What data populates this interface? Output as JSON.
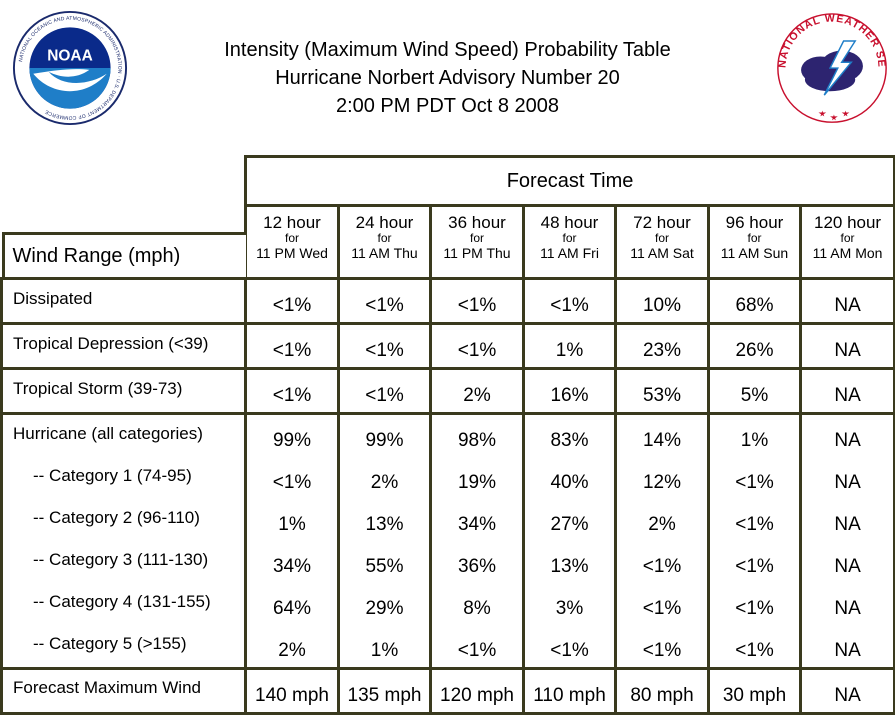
{
  "header": {
    "title_line1": "Intensity (Maximum Wind Speed) Probability Table",
    "title_line2": "Hurricane Norbert Advisory Number 20",
    "title_line3": "2:00 PM PDT Oct 8 2008",
    "noaa_logo": {
      "center_text": "NOAA",
      "ring_text": "NATIONAL OCEANIC AND ATMOSPHERIC ADMINISTRATION · U.S. DEPARTMENT OF COMMERCE"
    },
    "nws_logo": {
      "ring_text": "NATIONAL WEATHER SERVICE"
    }
  },
  "table": {
    "forecast_time_label": "Forecast Time",
    "wind_range_label": "Wind Range (mph)",
    "columns": [
      {
        "hour": "12 hour",
        "for": "for",
        "when": "11 PM Wed"
      },
      {
        "hour": "24 hour",
        "for": "for",
        "when": "11 AM Thu"
      },
      {
        "hour": "36 hour",
        "for": "for",
        "when": "11 PM Thu"
      },
      {
        "hour": "48 hour",
        "for": "for",
        "when": "11 AM Fri"
      },
      {
        "hour": "72 hour",
        "for": "for",
        "when": "11 AM Sat"
      },
      {
        "hour": "96 hour",
        "for": "for",
        "when": "11 AM Sun"
      },
      {
        "hour": "120 hour",
        "for": "for",
        "when": "11 AM Mon"
      }
    ],
    "groups": [
      {
        "rows": [
          {
            "label": "Dissipated",
            "values": [
              "<1%",
              "<1%",
              "<1%",
              "<1%",
              "10%",
              "68%",
              "NA"
            ]
          }
        ]
      },
      {
        "rows": [
          {
            "label": "Tropical Depression (<39)",
            "values": [
              "<1%",
              "<1%",
              "<1%",
              "1%",
              "23%",
              "26%",
              "NA"
            ]
          }
        ]
      },
      {
        "rows": [
          {
            "label": "Tropical Storm (39-73)",
            "values": [
              "<1%",
              "<1%",
              "2%",
              "16%",
              "53%",
              "5%",
              "NA"
            ]
          }
        ]
      },
      {
        "rows": [
          {
            "label": "Hurricane (all categories)",
            "values": [
              "99%",
              "99%",
              "98%",
              "83%",
              "14%",
              "1%",
              "NA"
            ]
          },
          {
            "label": "-- Category 1 (74-95)",
            "values": [
              "<1%",
              "2%",
              "19%",
              "40%",
              "12%",
              "<1%",
              "NA"
            ]
          },
          {
            "label": "-- Category 2 (96-110)",
            "values": [
              "1%",
              "13%",
              "34%",
              "27%",
              "2%",
              "<1%",
              "NA"
            ]
          },
          {
            "label": "-- Category 3 (111-130)",
            "values": [
              "34%",
              "55%",
              "36%",
              "13%",
              "<1%",
              "<1%",
              "NA"
            ]
          },
          {
            "label": "-- Category 4 (131-155)",
            "values": [
              "64%",
              "29%",
              "8%",
              "3%",
              "<1%",
              "<1%",
              "NA"
            ]
          },
          {
            "label": "-- Category 5 (>155)",
            "values": [
              "2%",
              "1%",
              "<1%",
              "<1%",
              "<1%",
              "<1%",
              "NA"
            ]
          }
        ]
      },
      {
        "rows": [
          {
            "label": "Forecast Maximum Wind",
            "values": [
              "140 mph",
              "135 mph",
              "120 mph",
              "110 mph",
              "80 mph",
              "30 mph",
              "NA"
            ]
          }
        ]
      }
    ]
  }
}
